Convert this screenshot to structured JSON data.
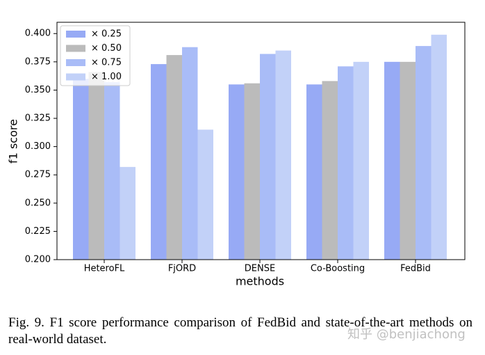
{
  "chart_data": {
    "type": "bar",
    "categories": [
      "HeteroFL",
      "FjORD",
      "DENSE",
      "Co-Boosting",
      "FedBid"
    ],
    "series": [
      {
        "name": "× 0.25",
        "color": "#97aaf5",
        "values": [
          0.36,
          0.373,
          0.355,
          0.355,
          0.375
        ]
      },
      {
        "name": "× 0.50",
        "color": "#bbbbbb",
        "values": [
          0.366,
          0.381,
          0.356,
          0.358,
          0.375
        ]
      },
      {
        "name": "× 0.75",
        "color": "#a9bcf7",
        "values": [
          0.357,
          0.388,
          0.382,
          0.371,
          0.389
        ]
      },
      {
        "name": "× 1.00",
        "color": "#c2d1f8",
        "values": [
          0.282,
          0.315,
          0.385,
          0.375,
          0.399
        ]
      }
    ],
    "ylim": [
      0.2,
      0.41
    ],
    "yticks": [
      {
        "value": 0.2,
        "label": "0.200"
      },
      {
        "value": 0.225,
        "label": "0.225"
      },
      {
        "value": 0.25,
        "label": "0.250"
      },
      {
        "value": 0.275,
        "label": "0.275"
      },
      {
        "value": 0.3,
        "label": "0.300"
      },
      {
        "value": 0.325,
        "label": "0.325"
      },
      {
        "value": 0.35,
        "label": "0.350"
      },
      {
        "value": 0.375,
        "label": "0.375"
      },
      {
        "value": 0.4,
        "label": "0.400"
      }
    ],
    "xlabel": "methods",
    "ylabel": "f1 score",
    "legend": "upper-left"
  },
  "caption": "Fig. 9.  F1 score performance comparison of FedBid and state-of-the-art methods on real-world dataset.",
  "watermark": "知乎 @benjiachong"
}
